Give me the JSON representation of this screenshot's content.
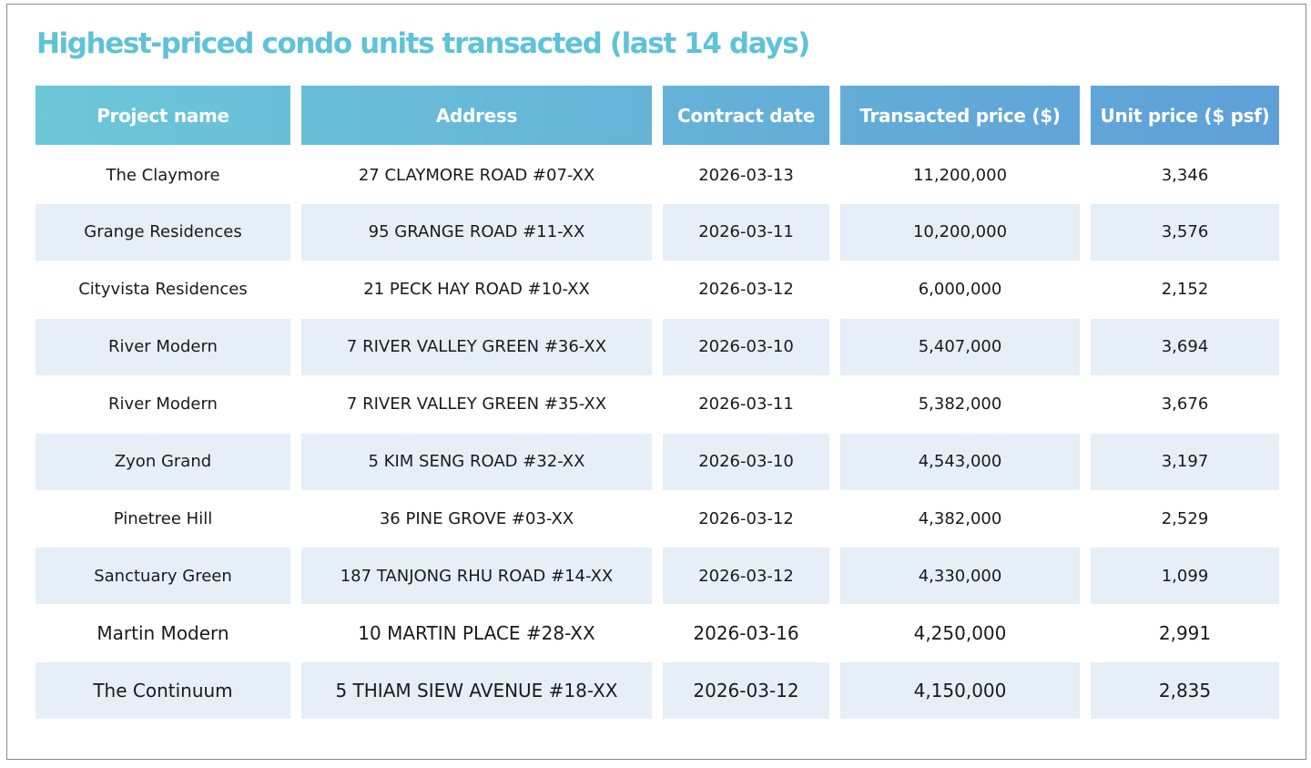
{
  "title": "Highest-priced condo units transacted (last 14 days)",
  "colors": {
    "title": "#5ec3d8",
    "header_gradient_start": "#6cc7d8",
    "header_gradient_end": "#5e9fd8",
    "row_alt_bg": "#e6eef8"
  },
  "headers": [
    "Project name",
    "Address",
    "Contract date",
    "Transacted price ($)",
    "Unit price ($ psf)"
  ],
  "rows": [
    [
      "The Claymore",
      "27 CLAYMORE ROAD  #07-XX",
      "2026-03-13",
      "11,200,000",
      "3,346"
    ],
    [
      "Grange Residences",
      "95 GRANGE ROAD  #11-XX",
      "2026-03-11",
      "10,200,000",
      "3,576"
    ],
    [
      "Cityvista Residences",
      "21 PECK HAY ROAD  #10-XX",
      "2026-03-12",
      "6,000,000",
      "2,152"
    ],
    [
      "River Modern",
      "7 RIVER VALLEY GREEN  #36-XX",
      "2026-03-10",
      "5,407,000",
      "3,694"
    ],
    [
      "River Modern",
      "7 RIVER VALLEY GREEN  #35-XX",
      "2026-03-11",
      "5,382,000",
      "3,676"
    ],
    [
      "Zyon Grand",
      "5 KIM SENG ROAD  #32-XX",
      "2026-03-10",
      "4,543,000",
      "3,197"
    ],
    [
      "Pinetree Hill",
      "36 PINE GROVE  #03-XX",
      "2026-03-12",
      "4,382,000",
      "2,529"
    ],
    [
      "Sanctuary Green",
      "187 TANJONG RHU ROAD  #14-XX",
      "2026-03-12",
      "4,330,000",
      "1,099"
    ],
    [
      "Martin Modern",
      "10 MARTIN PLACE  #28-XX",
      "2026-03-16",
      "4,250,000",
      "2,991"
    ],
    [
      "The Continuum",
      "5 THIAM SIEW AVENUE  #18-XX",
      "2026-03-12",
      "4,150,000",
      "2,835"
    ]
  ]
}
